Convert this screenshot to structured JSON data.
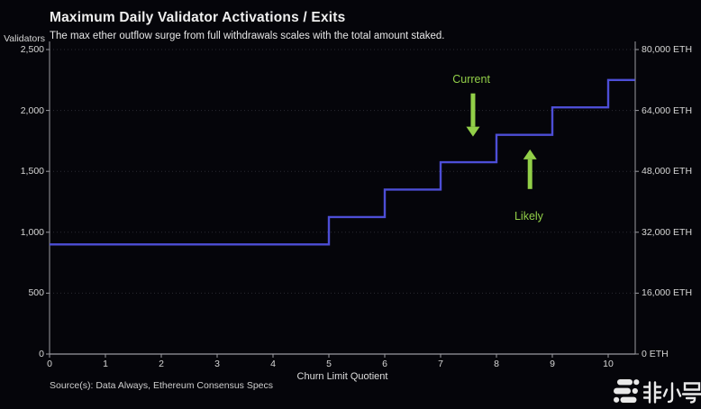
{
  "header": {
    "title": "Maximum Daily Validator Activations / Exits",
    "subtitle": "The max ether outflow surge from full withdrawals scales with the total amount staked."
  },
  "chart_data": {
    "type": "line",
    "step_shape": "hv",
    "title": "Maximum Daily Validator Activations / Exits",
    "xlabel": "Churn Limit Quotient",
    "ylabel_left": "Validators",
    "ylabel_right": "ETH",
    "xlim": [
      0,
      10.48
    ],
    "ylim_left": [
      0,
      2500
    ],
    "ylim_right": [
      0,
      80000
    ],
    "grid": "horizontal-dotted",
    "legend": "none",
    "x_ticks": [
      {
        "v": 0,
        "label": "0"
      },
      {
        "v": 1,
        "label": "1"
      },
      {
        "v": 2,
        "label": "2"
      },
      {
        "v": 3,
        "label": "3"
      },
      {
        "v": 4,
        "label": "4"
      },
      {
        "v": 5,
        "label": "5"
      },
      {
        "v": 6,
        "label": "6"
      },
      {
        "v": 7,
        "label": "7"
      },
      {
        "v": 8,
        "label": "8"
      },
      {
        "v": 9,
        "label": "9"
      },
      {
        "v": 10,
        "label": "10"
      }
    ],
    "y_ticks_left": [
      {
        "v": 0,
        "label": "0"
      },
      {
        "v": 500,
        "label": "500"
      },
      {
        "v": 1000,
        "label": "1,000"
      },
      {
        "v": 1500,
        "label": "1,500"
      },
      {
        "v": 2000,
        "label": "2,000"
      },
      {
        "v": 2500,
        "label": "2,500"
      }
    ],
    "y_ticks_right": [
      {
        "v": 0,
        "label": "0 ETH"
      },
      {
        "v": 16000,
        "label": "16,000 ETH"
      },
      {
        "v": 32000,
        "label": "32,000 ETH"
      },
      {
        "v": 48000,
        "label": "48,000 ETH"
      },
      {
        "v": 64000,
        "label": "64,000 ETH"
      },
      {
        "v": 80000,
        "label": "80,000 ETH"
      }
    ],
    "series": [
      {
        "name": "Maximum daily validator activations / exits",
        "color": "#4d4ed6",
        "steps": [
          {
            "x_from": 0,
            "x_to": 5,
            "validators": 900
          },
          {
            "x_from": 5,
            "x_to": 6,
            "validators": 1125
          },
          {
            "x_from": 6,
            "x_to": 7,
            "validators": 1350
          },
          {
            "x_from": 7,
            "x_to": 8,
            "validators": 1575
          },
          {
            "x_from": 8,
            "x_to": 9,
            "validators": 1800
          },
          {
            "x_from": 9,
            "x_to": 10,
            "validators": 2025
          },
          {
            "x_from": 10,
            "x_to": 10.48,
            "validators": 2250
          }
        ]
      }
    ],
    "annotations": [
      {
        "text": "Current",
        "color": "#92cf48",
        "arrow": "down",
        "label_x": 7.55,
        "label_y": 2255,
        "arrow_x": 7.58,
        "arrow_tail_y": 2140,
        "arrow_tip_y": 1785
      },
      {
        "text": "Likely",
        "color": "#92cf48",
        "arrow": "up",
        "label_x": 8.58,
        "label_y": 1130,
        "arrow_x": 8.6,
        "arrow_tail_y": 1355,
        "arrow_tip_y": 1680
      }
    ]
  },
  "footer": {
    "source": "Source(s): Data Always, Ethereum Consensus Specs"
  },
  "watermark": {
    "brand": "非小号",
    "logo": "feixiaohao-logo"
  },
  "colors": {
    "background": "#05050a",
    "title_text": "#efefef",
    "muted_text": "#cfcfcf",
    "axis": "#9a9aa0",
    "grid": "#2b2b33",
    "line": "#4d4ed6",
    "accent_green": "#92cf48",
    "watermark": "#e9e9e9"
  }
}
